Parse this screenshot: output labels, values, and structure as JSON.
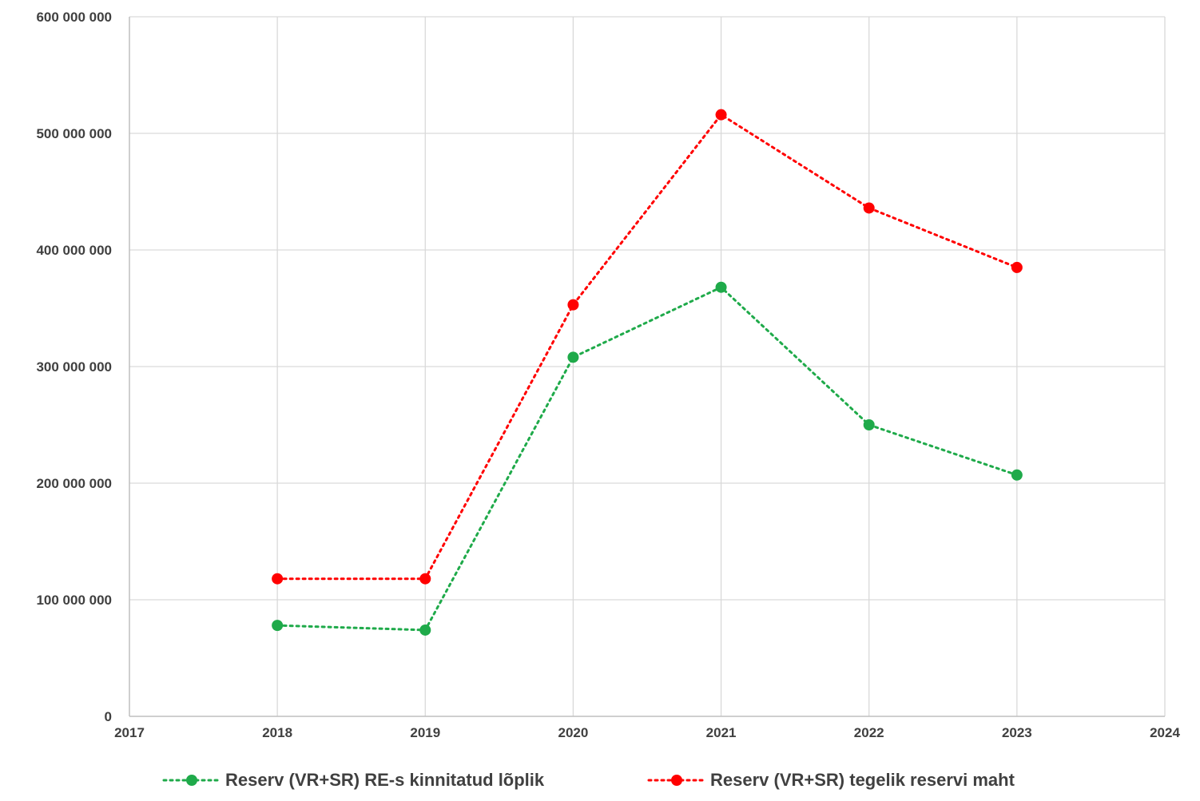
{
  "chart_data": {
    "type": "line",
    "title": "",
    "xlabel": "",
    "ylabel": "",
    "xlim": [
      2017,
      2024
    ],
    "ylim": [
      0,
      600000000
    ],
    "x_ticks": [
      2017,
      2018,
      2019,
      2020,
      2021,
      2022,
      2023,
      2024
    ],
    "x_tick_labels": [
      "2017",
      "2018",
      "2019",
      "2020",
      "2021",
      "2022",
      "2023",
      "2024"
    ],
    "y_ticks": [
      0,
      100000000,
      200000000,
      300000000,
      400000000,
      500000000,
      600000000
    ],
    "y_tick_labels": [
      "0",
      "100 000 000",
      "200 000 000",
      "300 000 000",
      "400 000 000",
      "500 000 000",
      "600 000 000"
    ],
    "grid": true,
    "legend_position": "bottom",
    "series": [
      {
        "name": "Reserv (VR+SR) RE-s kinnitatud lõplik",
        "color": "#1faa4a",
        "line_style": "dotted",
        "marker": "circle",
        "x": [
          2018,
          2019,
          2020,
          2021,
          2022,
          2023
        ],
        "values": [
          78000000,
          74000000,
          308000000,
          368000000,
          250000000,
          207000000
        ]
      },
      {
        "name": "Reserv (VR+SR) tegelik reservi maht",
        "color": "#ff0000",
        "line_style": "dotted",
        "marker": "circle",
        "x": [
          2018,
          2019,
          2020,
          2021,
          2022,
          2023
        ],
        "values": [
          118000000,
          118000000,
          353000000,
          516000000,
          436000000,
          385000000
        ]
      }
    ],
    "colors": {
      "grid": "#d9d9d9",
      "axis": "#bfbfbf",
      "tick_text": "#404040"
    }
  }
}
